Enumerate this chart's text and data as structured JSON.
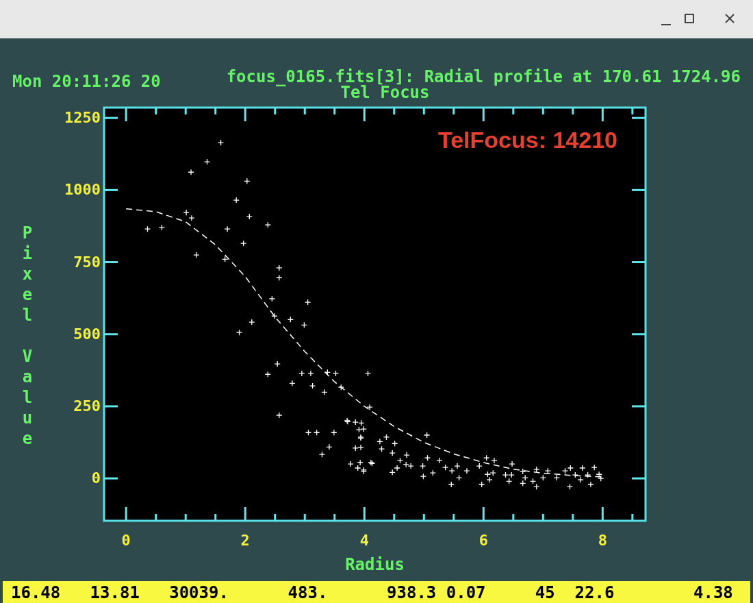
{
  "chart_data": {
    "type": "scatter",
    "title": "focus_0165.fits[3]: Radial profile at 170.61 1724.96",
    "subtitle": "Tel Focus",
    "xlabel": "Radius",
    "ylabel": "Pixel Value",
    "annotations": [
      "Mon 20:11:26 20",
      "TelFocus: 14210",
      "16.48   13.81   30039.      483.      938.3 0.07     45  22.6        4.38"
    ],
    "xlim": [
      -0.37,
      8.72
    ],
    "ylim": [
      -147,
      1286
    ],
    "xticks": [
      0,
      {
        "value": 0.5,
        "label": null
      },
      {
        "value": 1,
        "label": null
      },
      {
        "value": 1.5,
        "label": null
      },
      2,
      {
        "value": 2.5,
        "label": null
      },
      {
        "value": 3,
        "label": null
      },
      {
        "value": 3.5,
        "label": null
      },
      4,
      {
        "value": 4.5,
        "label": null
      },
      {
        "value": 5,
        "label": null
      },
      {
        "value": 5.5,
        "label": null
      },
      6,
      {
        "value": 6.5,
        "label": null
      },
      {
        "value": 7,
        "label": null
      },
      {
        "value": 7.5,
        "label": null
      },
      8,
      {
        "value": 8.5,
        "label": null
      }
    ],
    "yticks": [
      0,
      250,
      500,
      750,
      1000,
      1250
    ],
    "grid": false,
    "series": [
      {
        "color": "#ffffff",
        "marker": "cross",
        "x": [
          0.36,
          0.6,
          1.01,
          1.1,
          1.09,
          1.18,
          1.36,
          1.59,
          1.66,
          1.7,
          1.85,
          1.9,
          1.97,
          2.03,
          2.07,
          2.11,
          2.38,
          2.38,
          2.45,
          2.49,
          2.54,
          2.57,
          2.57,
          2.57,
          2.76,
          2.79,
          2.99,
          2.95,
          3.05,
          3.06,
          3.1,
          3.13,
          3.2,
          3.29,
          3.33,
          3.38,
          3.41,
          3.49,
          3.52,
          3.61,
          3.71,
          3.77,
          3.85,
          3.91,
          3.94,
          3.94,
          3.99,
          4.06,
          4.13,
          4.09,
          3.72,
          3.95,
          3.99,
          3.94,
          3.85,
          3.93,
          3.89,
          3.99,
          4.11,
          4.26,
          4.37,
          4.51,
          4.29,
          4.47,
          4.71,
          4.6,
          5.05,
          4.7,
          4.55,
          4.47,
          4.78,
          4.98,
          5.06,
          4.99,
          5.15,
          5.26,
          5.36,
          5.47,
          5.56,
          5.59,
          5.46,
          5.72,
          5.93,
          6.05,
          5.97,
          6.07,
          6.18,
          6.16,
          6.1,
          6.37,
          6.48,
          6.47,
          6.43,
          6.66,
          6.7,
          6.66,
          6.83,
          6.89,
          6.89,
          7.0,
          7.08,
          7.23,
          7.37,
          7.46,
          7.45,
          7.54,
          7.63,
          7.66,
          7.75,
          7.8,
          7.86,
          7.94,
          7.97
        ],
        "values": [
          865,
          870,
          922,
          903,
          1062,
          775,
          1098,
          1164,
          760,
          865,
          965,
          506,
          815,
          1031,
          908,
          542,
          879,
          361,
          623,
          563,
          397,
          219,
          730,
          696,
          551,
          330,
          532,
          364,
          611,
          159,
          364,
          321,
          159,
          83,
          299,
          368,
          109,
          159,
          364,
          316,
          200,
          50,
          195,
          169,
          143,
          107,
          29,
          364,
          52,
          247,
          197,
          192,
          171,
          140,
          105,
          55,
          36,
          24,
          55,
          128,
          143,
          121,
          102,
          88,
          81,
          62,
          150,
          48,
          36,
          21,
          43,
          43,
          71,
          7,
          19,
          62,
          38,
          26,
          43,
          2,
          -21,
          26,
          43,
          71,
          -21,
          14,
          62,
          19,
          -5,
          12,
          50,
          12,
          -10,
          24,
          2,
          -17,
          -10,
          -29,
          31,
          2,
          26,
          2,
          26,
          36,
          -29,
          12,
          -5,
          36,
          12,
          -21,
          38,
          14,
          0
        ]
      },
      {
        "type": "line",
        "color": "#ffffff",
        "line_style": "dashed",
        "marker": "none",
        "x": [
          0,
          0.5,
          1,
          1.5,
          2,
          2.5,
          3,
          3.5,
          4,
          4.5,
          5,
          5.5,
          6,
          6.5,
          7,
          7.5,
          8
        ],
        "values": [
          935,
          925,
          890,
          810,
          700,
          560,
          440,
          335,
          250,
          180,
          125,
          85,
          55,
          32,
          18,
          10,
          5
        ]
      }
    ]
  }
}
